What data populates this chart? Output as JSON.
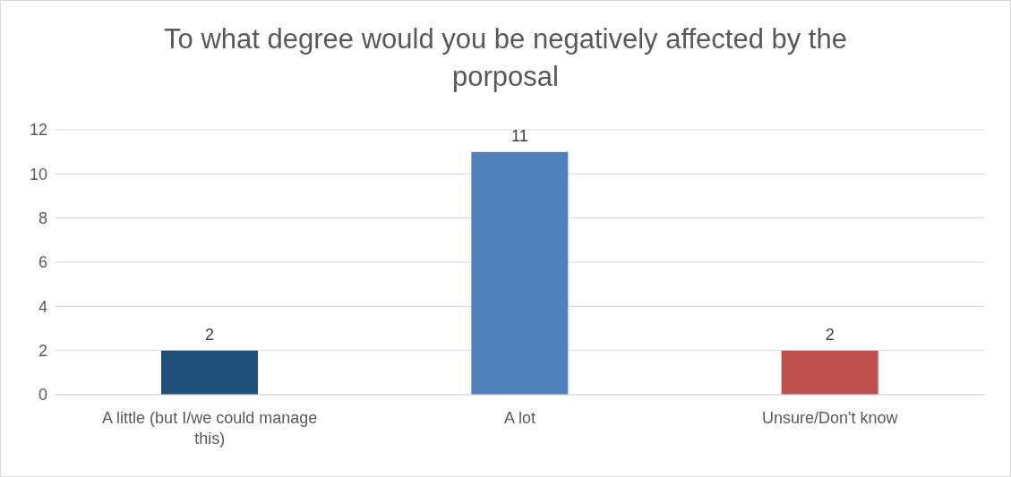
{
  "chart_data": {
    "type": "bar",
    "title": "To what degree would you be negatively affected by the porposal",
    "categories": [
      "A little (but I/we could manage this)",
      "A lot",
      "Unsure/Don't know"
    ],
    "values": [
      2,
      11,
      2
    ],
    "colors": [
      "#1f4e79",
      "#4f81bd",
      "#c0504d"
    ],
    "ylim": [
      0,
      12
    ],
    "yticks": [
      0,
      2,
      4,
      6,
      8,
      10,
      12
    ],
    "grid": "y",
    "data_labels": true
  }
}
